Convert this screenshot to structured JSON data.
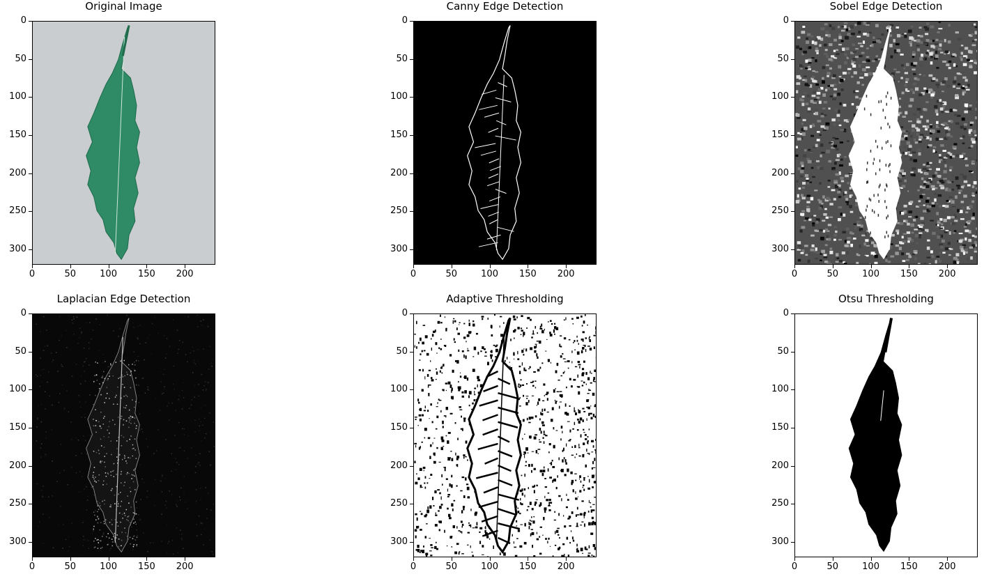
{
  "figure": {
    "panels": [
      {
        "id": "original",
        "title": "Original Image",
        "render": "original"
      },
      {
        "id": "canny",
        "title": "Canny Edge Detection",
        "render": "canny"
      },
      {
        "id": "sobel",
        "title": "Sobel Edge Detection",
        "render": "sobel"
      },
      {
        "id": "laplacian",
        "title": "Laplacian Edge Detection",
        "render": "laplacian"
      },
      {
        "id": "adaptive",
        "title": "Adaptive Thresholding",
        "render": "adaptive"
      },
      {
        "id": "otsu",
        "title": "Otsu Thresholding",
        "render": "otsu"
      }
    ],
    "axes": {
      "x_ticks": [
        "0",
        "50",
        "100",
        "150",
        "200"
      ],
      "x_values": [
        0,
        50,
        100,
        150,
        200
      ],
      "y_ticks": [
        "0",
        "50",
        "100",
        "150",
        "200",
        "250",
        "300"
      ],
      "y_values": [
        0,
        50,
        100,
        150,
        200,
        250,
        300
      ],
      "x_range": [
        0,
        240
      ],
      "y_range": [
        0,
        320
      ]
    },
    "colors": {
      "leaf": "#2f8a66",
      "leaf_dark": "#1f6b4c",
      "background_gray": "#c9cdd0",
      "edge_white": "#ffffff",
      "black": "#000000"
    }
  }
}
